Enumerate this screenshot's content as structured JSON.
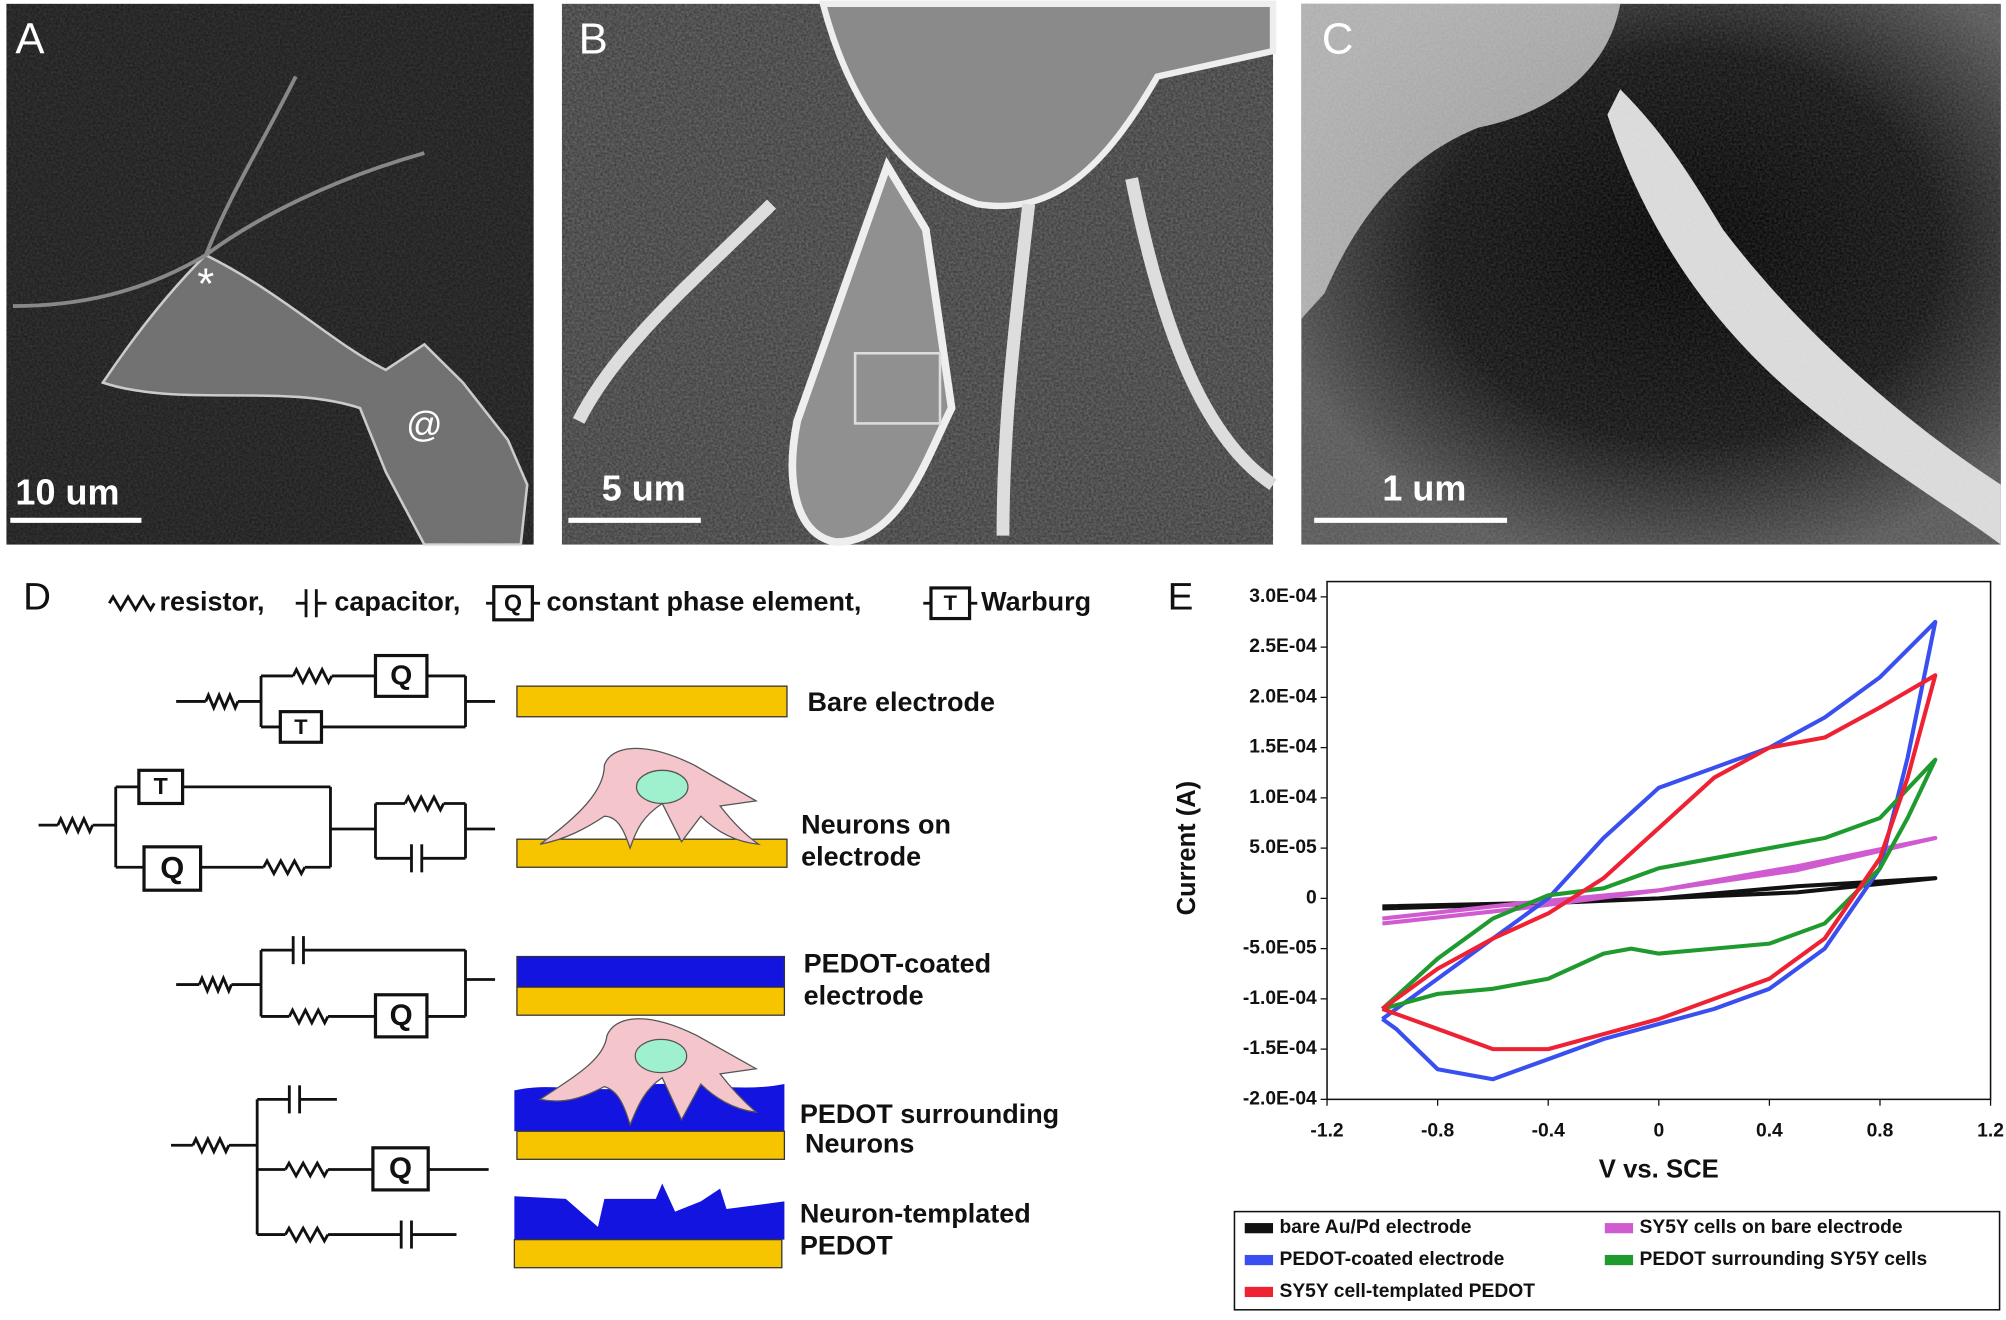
{
  "panels": [
    {
      "label": "A",
      "scale_bar": "10 um",
      "markers": [
        "*",
        "@"
      ]
    },
    {
      "label": "B",
      "scale_bar": "5 um"
    },
    {
      "label": "C",
      "scale_bar": "1 um"
    }
  ],
  "circuit_panel": {
    "label": "D",
    "key": [
      "resistor,",
      "capacitor,",
      "constant phase element,",
      "Warburg"
    ],
    "symbols": {
      "cpe": "Q",
      "warburg": "T"
    },
    "electrodes": [
      {
        "lines": [
          "Bare electrode"
        ]
      },
      {
        "lines": [
          "Neurons on",
          "electrode"
        ]
      },
      {
        "lines": [
          "PEDOT-coated",
          "electrode"
        ]
      },
      {
        "lines": [
          "PEDOT surrounding",
          "Neurons"
        ]
      },
      {
        "lines": [
          "Neuron-templated",
          "PEDOT"
        ]
      }
    ]
  },
  "chart_data": {
    "type": "line",
    "panel_label": "E",
    "x_label": "V vs. SCE",
    "y_label": "Current (A)",
    "xlim": [
      -1.2,
      1.2
    ],
    "xticks": [
      -1.2,
      -0.8,
      -0.4,
      0,
      0.4,
      0.8,
      1.2
    ],
    "ylim": [
      -0.0002,
      0.0003
    ],
    "yticks": [
      {
        "value": 0.0003,
        "label": "3.0E-04"
      },
      {
        "value": 0.00025,
        "label": "2.5E-04"
      },
      {
        "value": 0.0002,
        "label": "2.0E-04"
      },
      {
        "value": 0.00015,
        "label": "1.5E-04"
      },
      {
        "value": 0.0001,
        "label": "1.0E-04"
      },
      {
        "value": 5e-05,
        "label": "5.0E-05"
      },
      0,
      {
        "value": -5e-05,
        "label": "-5.0E-05"
      },
      {
        "value": -0.0001,
        "label": "-1.0E-04"
      },
      {
        "value": -0.00015,
        "label": "-1.5E-04"
      },
      {
        "value": -0.0002,
        "label": "-2.0E-04"
      }
    ],
    "grid": false,
    "series": [
      {
        "name": "bare Au/Pd electrode",
        "color": "#111111",
        "x": [
          -1,
          -0.5,
          0,
          0.5,
          1,
          0.5,
          0,
          -0.5,
          -1
        ],
        "values": [
          -8e-06,
          -5e-06,
          0,
          6e-06,
          2e-05,
          1.2e-05,
          0,
          -6e-06,
          -1e-05
        ]
      },
      {
        "name": "SY5Y cells on bare electrode",
        "color": "#d05ad0",
        "x": [
          -1,
          -0.5,
          0,
          0.5,
          1,
          0.5,
          0,
          -0.5,
          -1
        ],
        "values": [
          -2e-05,
          -5e-06,
          8e-06,
          2.8e-05,
          6e-05,
          3.2e-05,
          8e-06,
          -1e-05,
          -2.5e-05
        ]
      },
      {
        "name": "PEDOT-coated electrode",
        "color": "#3a4ff0",
        "x": [
          -1,
          -0.8,
          -0.6,
          -0.4,
          -0.2,
          0,
          0.2,
          0.4,
          0.6,
          0.8,
          1,
          0.9,
          0.8,
          0.6,
          0.4,
          0.2,
          0,
          -0.2,
          -0.4,
          -0.6,
          -0.8,
          -0.95,
          -1
        ],
        "values": [
          -0.00012,
          -8e-05,
          -4e-05,
          0,
          6e-05,
          0.00011,
          0.00013,
          0.00015,
          0.00018,
          0.00022,
          0.000275,
          0.00014,
          3e-05,
          -5e-05,
          -9e-05,
          -0.00011,
          -0.000125,
          -0.00014,
          -0.00016,
          -0.00018,
          -0.00017,
          -0.00013,
          -0.00012
        ]
      },
      {
        "name": "PEDOT surrounding SY5Y cells",
        "color": "#1f9a2e",
        "x": [
          -1,
          -0.8,
          -0.6,
          -0.4,
          -0.2,
          0,
          0.2,
          0.4,
          0.6,
          0.8,
          1,
          0.9,
          0.8,
          0.6,
          0.4,
          0.2,
          0,
          -0.1,
          -0.2,
          -0.4,
          -0.6,
          -0.8,
          -1
        ],
        "values": [
          -0.00011,
          -6e-05,
          -2e-05,
          3e-06,
          1e-05,
          3e-05,
          4e-05,
          5e-05,
          6e-05,
          8e-05,
          0.000138,
          8e-05,
          3e-05,
          -2.5e-05,
          -4.5e-05,
          -5e-05,
          -5.5e-05,
          -5e-05,
          -5.5e-05,
          -8e-05,
          -9e-05,
          -9.5e-05,
          -0.00011
        ]
      },
      {
        "name": "SY5Y cell-templated PEDOT",
        "color": "#ee2233",
        "x": [
          -1,
          -0.8,
          -0.6,
          -0.4,
          -0.2,
          0,
          0.2,
          0.4,
          0.6,
          0.8,
          1,
          0.9,
          0.8,
          0.6,
          0.4,
          0.2,
          0,
          -0.2,
          -0.4,
          -0.6,
          -0.8,
          -1
        ],
        "values": [
          -0.00011,
          -7e-05,
          -4e-05,
          -1.5e-05,
          2e-05,
          7e-05,
          0.00012,
          0.00015,
          0.00016,
          0.00019,
          0.000222,
          0.00012,
          4e-05,
          -4e-05,
          -8e-05,
          -0.0001,
          -0.00012,
          -0.000135,
          -0.00015,
          -0.00015,
          -0.00013,
          -0.00011
        ]
      }
    ]
  }
}
